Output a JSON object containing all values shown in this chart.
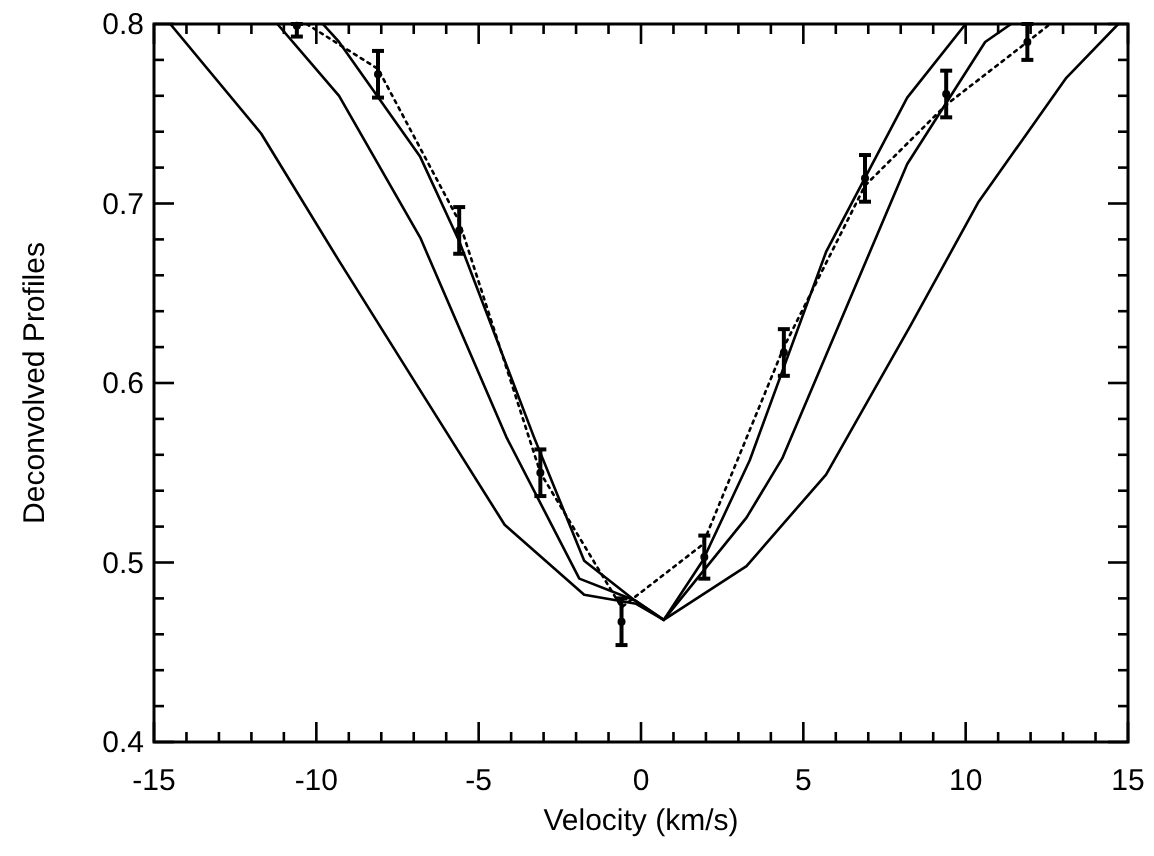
{
  "chart_data": {
    "type": "line",
    "xlabel": "Velocity (km/s)",
    "ylabel": "Deconvolved Profiles",
    "xlim": [
      -15,
      15
    ],
    "ylim": [
      0.4,
      0.8
    ],
    "xticks": [
      -15,
      {
        "value": -14,
        "label": null
      },
      {
        "value": -13,
        "label": null
      },
      {
        "value": -12,
        "label": null
      },
      {
        "value": -11,
        "label": null
      },
      -10,
      {
        "value": -9,
        "label": null
      },
      {
        "value": -8,
        "label": null
      },
      {
        "value": -7,
        "label": null
      },
      {
        "value": -6,
        "label": null
      },
      -5,
      {
        "value": -4,
        "label": null
      },
      {
        "value": -3,
        "label": null
      },
      {
        "value": -2,
        "label": null
      },
      {
        "value": -1,
        "label": null
      },
      0,
      {
        "value": 1,
        "label": null
      },
      {
        "value": 2,
        "label": null
      },
      {
        "value": 3,
        "label": null
      },
      {
        "value": 4,
        "label": null
      },
      5,
      {
        "value": 6,
        "label": null
      },
      {
        "value": 7,
        "label": null
      },
      {
        "value": 8,
        "label": null
      },
      {
        "value": 9,
        "label": null
      },
      10,
      {
        "value": 11,
        "label": null
      },
      {
        "value": 12,
        "label": null
      },
      {
        "value": 13,
        "label": null
      },
      {
        "value": 14,
        "label": null
      },
      15
    ],
    "yticks": [
      0.4,
      {
        "value": 0.42,
        "label": null
      },
      {
        "value": 0.44,
        "label": null
      },
      {
        "value": 0.46,
        "label": null
      },
      {
        "value": 0.48,
        "label": null
      },
      0.5,
      {
        "value": 0.52,
        "label": null
      },
      {
        "value": 0.54,
        "label": null
      },
      {
        "value": 0.56,
        "label": null
      },
      {
        "value": 0.58,
        "label": null
      },
      0.6,
      {
        "value": 0.62,
        "label": null
      },
      {
        "value": 0.64,
        "label": null
      },
      {
        "value": 0.66,
        "label": null
      },
      {
        "value": 0.68,
        "label": null
      },
      0.7,
      {
        "value": 0.72,
        "label": null
      },
      {
        "value": 0.74,
        "label": null
      },
      {
        "value": 0.76,
        "label": null
      },
      {
        "value": 0.78,
        "label": null
      },
      0.8
    ],
    "grid": false,
    "series": [
      {
        "color": "#000000",
        "line_style": "solid",
        "marker": "none",
        "x": [
          -14.5,
          -11.7,
          -9.3,
          -6.7,
          -4.2,
          -1.75,
          -0.15,
          0.7,
          3.25,
          5.7,
          8.3,
          10.4,
          13.1,
          14.7
        ],
        "values": [
          0.8,
          0.739,
          0.668,
          0.593,
          0.521,
          0.482,
          0.477,
          0.468,
          0.498,
          0.549,
          0.632,
          0.701,
          0.77,
          0.8
        ]
      },
      {
        "color": "#000000",
        "line_style": "solid",
        "marker": "none",
        "x": [
          -11.2,
          -9.3,
          -6.8,
          -4.15,
          -1.9,
          -0.2,
          0.7,
          3.25,
          4.35,
          8.2,
          10.6,
          11.4
        ],
        "values": [
          0.8,
          0.76,
          0.681,
          0.57,
          0.491,
          0.479,
          0.468,
          0.525,
          0.558,
          0.722,
          0.79,
          0.8
        ]
      },
      {
        "color": "#000000",
        "line_style": "solid",
        "marker": "none",
        "x": [
          -9.8,
          -9.3,
          -6.8,
          -5.6,
          -3.3,
          -1.75,
          -0.2,
          0.7,
          1.9,
          3.35,
          5.7,
          8.2,
          10.0
        ],
        "values": [
          0.8,
          0.79,
          0.726,
          0.679,
          0.57,
          0.501,
          0.479,
          0.468,
          0.501,
          0.557,
          0.673,
          0.759,
          0.8
        ]
      },
      {
        "color": "#000000",
        "line_style": "dotted",
        "marker": "none",
        "x": [
          -10.3,
          -8.1,
          -5.6,
          -3.1,
          -0.6,
          1.9,
          4.4,
          6.9,
          9.4,
          11.9,
          12.6
        ],
        "values": [
          0.8,
          0.775,
          0.69,
          0.55,
          0.475,
          0.51,
          0.62,
          0.71,
          0.755,
          0.79,
          0.8
        ]
      },
      {
        "type": "scatter",
        "color": "#000000",
        "x": [
          -10.6,
          -8.1,
          -5.6,
          -3.1,
          -0.6,
          1.95,
          4.4,
          6.9,
          9.4,
          11.9
        ],
        "values": [
          0.799,
          0.772,
          0.685,
          0.55,
          0.467,
          0.503,
          0.617,
          0.714,
          0.761,
          0.79
        ],
        "errors": [
          [
            0.793,
            0.8
          ],
          0.013,
          0.013,
          0.013,
          0.013,
          0.012,
          0.013,
          0.013,
          0.013,
          0.01
        ]
      }
    ]
  }
}
